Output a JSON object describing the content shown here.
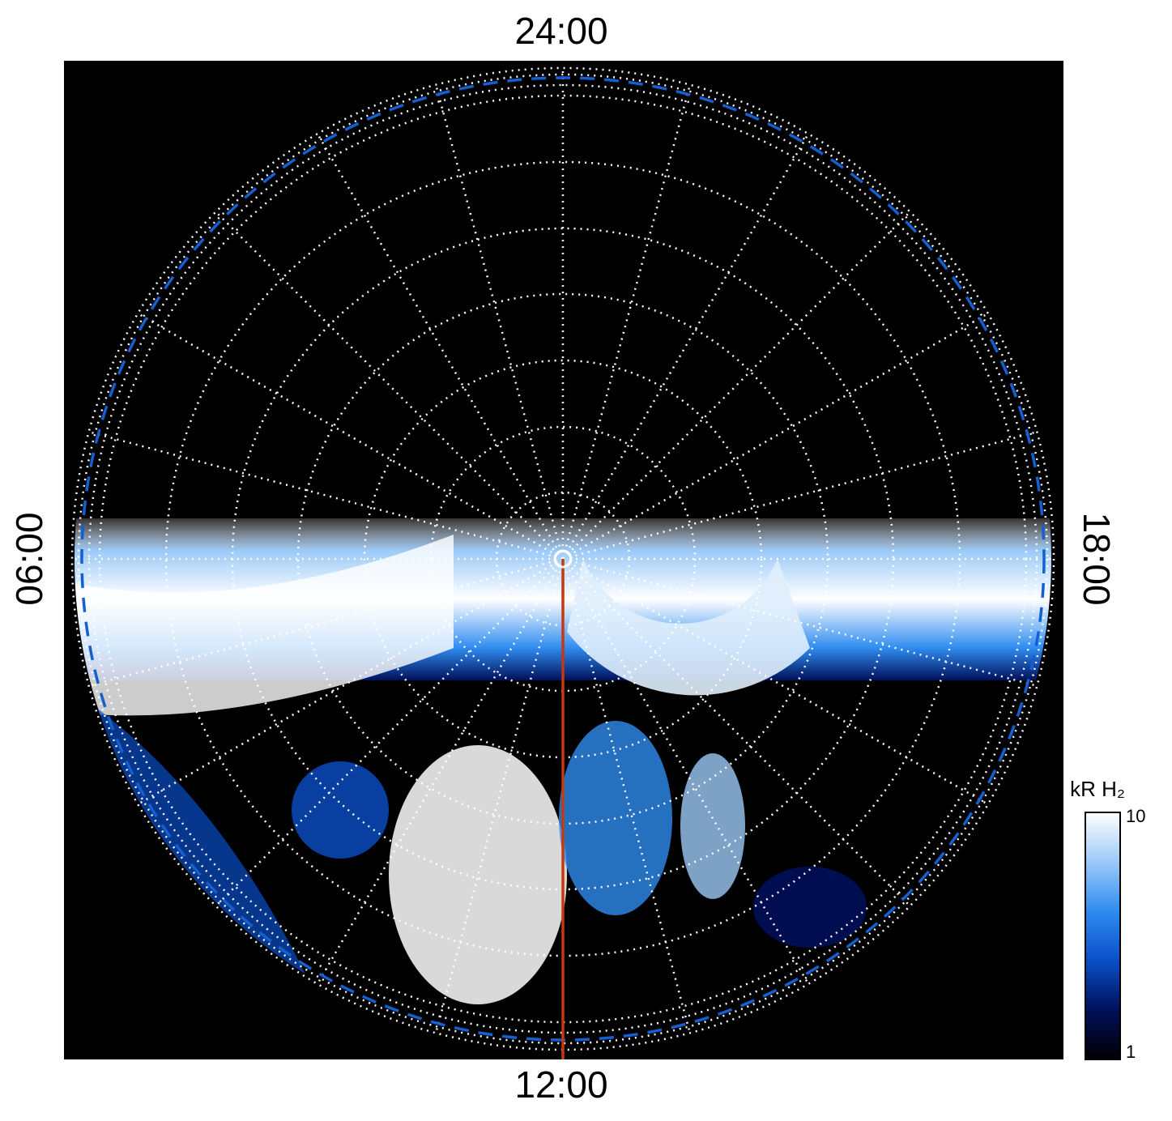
{
  "chart_data": {
    "type": "polar-image",
    "direction_labels": [
      "24:00",
      "06:00",
      "12:00",
      "18:00"
    ],
    "colorbar": {
      "label": "kR H₂",
      "lim": [
        1,
        10
      ],
      "ticks": [
        1,
        10
      ],
      "log": true,
      "colors": [
        "#000000",
        "#00105a",
        "#0a4fc8",
        "#2f8cf0",
        "#9ccaf8",
        "#ffffff"
      ]
    }
  }
}
